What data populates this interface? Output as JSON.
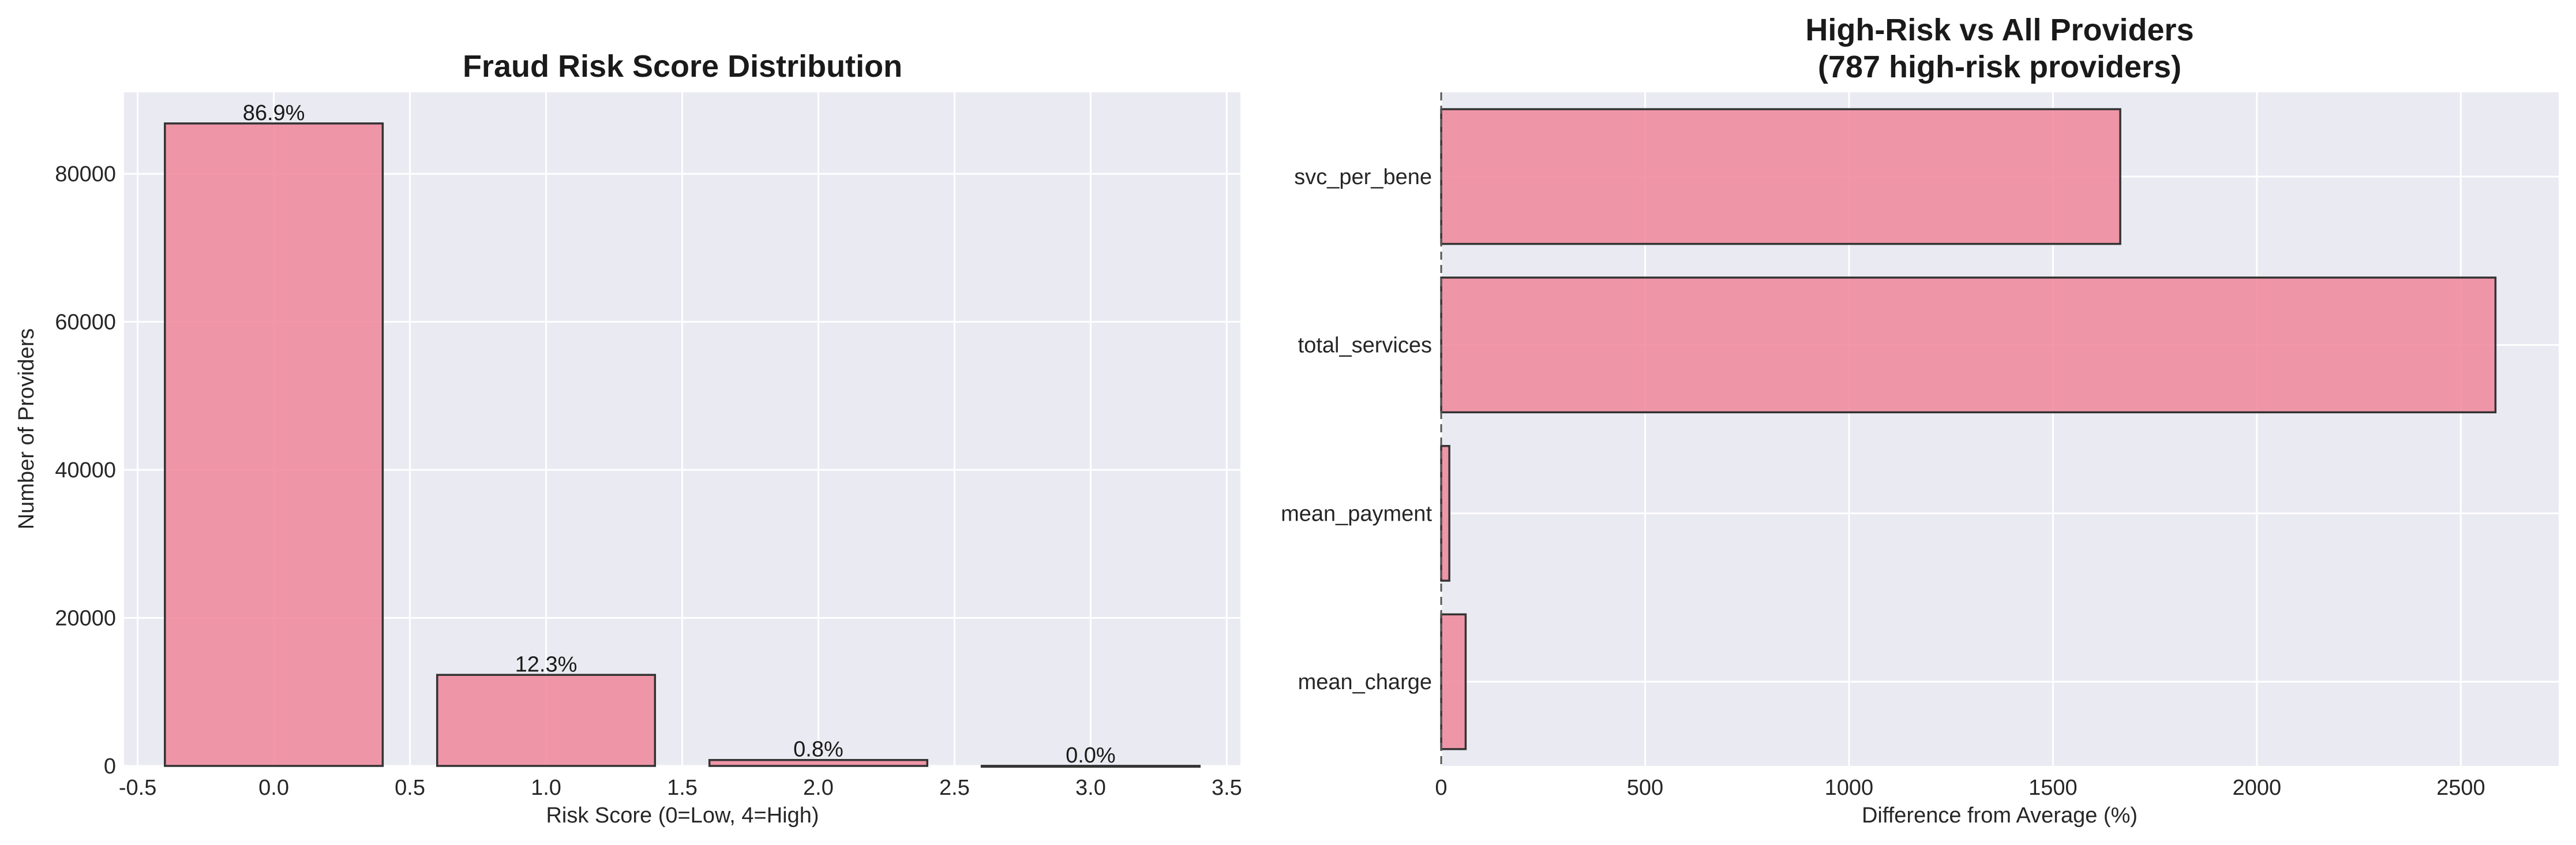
{
  "chart_data": [
    {
      "type": "bar",
      "title": "Fraud Risk Score Distribution",
      "xlabel": "Risk Score (0=Low, 4=High)",
      "ylabel": "Number of Providers",
      "x": [
        0,
        1,
        2,
        3
      ],
      "values": [
        86800,
        12300,
        800,
        10
      ],
      "data_labels": [
        "86.9%",
        "12.3%",
        "0.8%",
        "0.0%"
      ],
      "xlim": [
        -0.55,
        3.55
      ],
      "ylim": [
        0,
        91000
      ],
      "xticks": [
        -0.5,
        0.0,
        0.5,
        1.0,
        1.5,
        2.0,
        2.5,
        3.0,
        3.5
      ],
      "xtick_labels": [
        "-0.5",
        "0.0",
        "0.5",
        "1.0",
        "1.5",
        "2.0",
        "2.5",
        "3.0",
        "3.5"
      ],
      "yticks": [
        0,
        20000,
        40000,
        60000,
        80000
      ],
      "ytick_labels": [
        "0",
        "20000",
        "40000",
        "60000",
        "80000"
      ],
      "grid": true,
      "color": "#f08ca0"
    },
    {
      "type": "bar",
      "orientation": "horizontal",
      "title": "High-Risk vs All Providers\n(787 high-risk providers)",
      "xlabel": "Difference from Average (%)",
      "ylabel": "",
      "categories": [
        "svc_per_bene",
        "total_services",
        "mean_payment",
        "mean_charge"
      ],
      "values": [
        1665,
        2585,
        20,
        60
      ],
      "xlim": [
        0,
        2740
      ],
      "xticks": [
        0,
        500,
        1000,
        1500,
        2000,
        2500
      ],
      "xtick_labels": [
        "0",
        "500",
        "1000",
        "1500",
        "2000",
        "2500"
      ],
      "reference_line": 0,
      "grid": true,
      "color": "#f08ca0"
    }
  ]
}
